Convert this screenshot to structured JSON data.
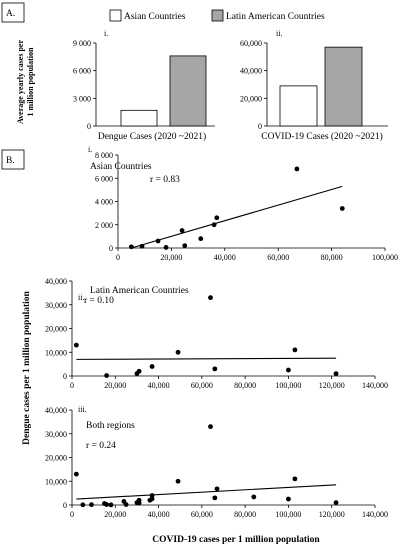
{
  "panel_a_label": "A.",
  "panel_b_label": "B.",
  "legend": {
    "asian": "Asian Countries",
    "latin": "Latin American Countries"
  },
  "shared_ylabel_a_line1": "Average yearly cases per",
  "shared_ylabel_a_line2": "1 million population",
  "shared_ylabel_b": "Dengue cases per 1 million population",
  "shared_xlabel_b": "COVID-19 cases per 1 million population",
  "colors": {
    "asian": "#ffffff",
    "latin": "#a6a6a6",
    "ink": "#000000"
  },
  "chart_data": [
    {
      "id": "a1",
      "type": "bar",
      "panel_tag": "i.",
      "xlabel": "Dengue Cases (2020 ~2021)",
      "categories": [
        "Asian Countries",
        "Latin American Countries"
      ],
      "values": [
        1700,
        7600
      ],
      "ylim": [
        0,
        9000
      ],
      "yticks": [
        0,
        3000,
        6000,
        9000
      ],
      "ytick_labels": [
        "0",
        "3 000",
        "6 000",
        "9 000"
      ]
    },
    {
      "id": "a2",
      "type": "bar",
      "panel_tag": "ii.",
      "xlabel": "COVID-19 Cases (2020 ~2021)",
      "categories": [
        "Asian Countries",
        "Latin American Countries"
      ],
      "values": [
        29000,
        57000
      ],
      "ylim": [
        0,
        60000
      ],
      "yticks": [
        0,
        20000,
        40000,
        60000
      ],
      "ytick_labels": [
        "0",
        "20,000",
        "40,000",
        "60,000"
      ]
    },
    {
      "id": "b1",
      "type": "scatter",
      "panel_tag": "i.",
      "title": "Asian Countries",
      "r_text": "r = 0.83",
      "xlim": [
        0,
        100000
      ],
      "ylim": [
        0,
        8000
      ],
      "xticks": [
        0,
        20000,
        40000,
        60000,
        80000,
        100000
      ],
      "xtick_labels": [
        "0",
        "20,000",
        "40,000",
        "60,000",
        "80,000",
        "100,000"
      ],
      "yticks": [
        0,
        2000,
        4000,
        6000,
        8000
      ],
      "ytick_labels": [
        "0",
        "2 000",
        "4 000",
        "6 000",
        "8 000"
      ],
      "points": [
        [
          5000,
          100
        ],
        [
          9000,
          150
        ],
        [
          15000,
          600
        ],
        [
          18000,
          50
        ],
        [
          24000,
          1500
        ],
        [
          25000,
          200
        ],
        [
          31000,
          800
        ],
        [
          36000,
          2000
        ],
        [
          37000,
          2600
        ],
        [
          67000,
          6800
        ],
        [
          84000,
          3400
        ]
      ],
      "trend": [
        [
          5000,
          0
        ],
        [
          84000,
          5300
        ]
      ]
    },
    {
      "id": "b2",
      "type": "scatter",
      "panel_tag": "ii.",
      "title": "Latin American Countries",
      "r_text": "r =  0.10",
      "xlim": [
        0,
        140000
      ],
      "ylim": [
        0,
        40000
      ],
      "xticks": [
        0,
        20000,
        40000,
        60000,
        80000,
        100000,
        120000,
        140000
      ],
      "xtick_labels": [
        "0",
        "20,000",
        "40,000",
        "60,000",
        "80,000",
        "100,000",
        "120,000",
        "140,000"
      ],
      "yticks": [
        0,
        10000,
        20000,
        30000,
        40000
      ],
      "ytick_labels": [
        "0",
        "10,000",
        "20,000",
        "30,000",
        "40,000"
      ],
      "points": [
        [
          2000,
          13000
        ],
        [
          16000,
          200
        ],
        [
          30000,
          1000
        ],
        [
          31000,
          2000
        ],
        [
          37000,
          4000
        ],
        [
          49000,
          10000
        ],
        [
          64000,
          33000
        ],
        [
          66000,
          3000
        ],
        [
          100000,
          2500
        ],
        [
          103000,
          11000
        ],
        [
          122000,
          1000
        ]
      ],
      "trend": [
        [
          2000,
          7000
        ],
        [
          122000,
          7500
        ]
      ]
    },
    {
      "id": "b3",
      "type": "scatter",
      "panel_tag": "iii.",
      "title": "Both regions",
      "r_text": "r  = 0.24",
      "xlim": [
        0,
        140000
      ],
      "ylim": [
        0,
        40000
      ],
      "xticks": [
        0,
        20000,
        40000,
        60000,
        80000,
        100000,
        120000,
        140000
      ],
      "xtick_labels": [
        "0",
        "20,000",
        "40,000",
        "60,000",
        "80,000",
        "100,000",
        "120,000",
        "140,000"
      ],
      "yticks": [
        0,
        10000,
        20000,
        30000,
        40000
      ],
      "ytick_labels": [
        "0",
        "10,000",
        "20,000",
        "30,000",
        "40,000"
      ],
      "points": [
        [
          2000,
          13000
        ],
        [
          5000,
          100
        ],
        [
          9000,
          150
        ],
        [
          15000,
          600
        ],
        [
          16000,
          200
        ],
        [
          18000,
          50
        ],
        [
          24000,
          1500
        ],
        [
          25000,
          200
        ],
        [
          30000,
          1000
        ],
        [
          31000,
          2000
        ],
        [
          31000,
          800
        ],
        [
          36000,
          2000
        ],
        [
          37000,
          2600
        ],
        [
          37000,
          4000
        ],
        [
          49000,
          10000
        ],
        [
          64000,
          33000
        ],
        [
          66000,
          3000
        ],
        [
          67000,
          6800
        ],
        [
          84000,
          3400
        ],
        [
          100000,
          2500
        ],
        [
          103000,
          11000
        ],
        [
          122000,
          1000
        ]
      ],
      "trend": [
        [
          2000,
          2500
        ],
        [
          122000,
          8500
        ]
      ]
    }
  ]
}
